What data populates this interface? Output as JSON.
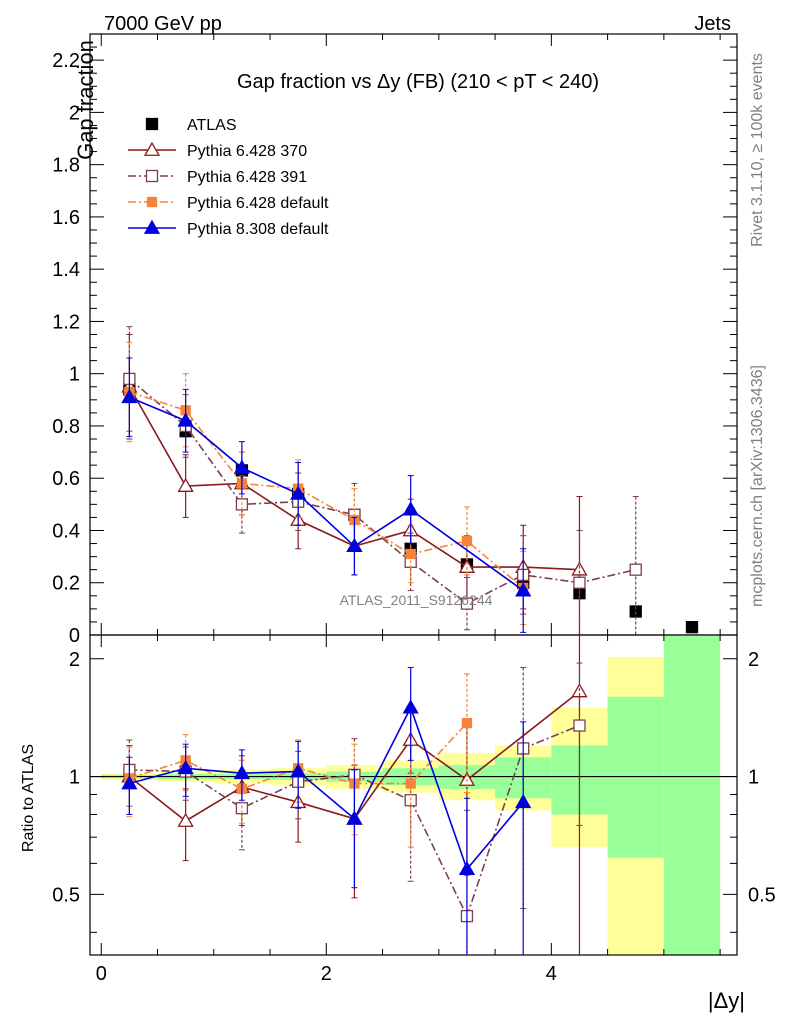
{
  "header": {
    "energy_label": "7000 GeV pp",
    "category_label": "Jets",
    "rivet_label": "Rivet 3.1.10, ≥ 100k events",
    "mcplots_label": "mcplots.cern.ch [arXiv:1306.3436]",
    "analysis_label": "ATLAS_2011_S9126244"
  },
  "chart_data": [
    {
      "type": "scatter",
      "title": "Gap fraction vs Δy (FB) (210 < pT < 240)",
      "ylabel": "Gap fraction",
      "xlim": [
        -0.1,
        5.65
      ],
      "ylim": [
        0,
        2.3
      ],
      "y_ticks": [
        "0",
        "0.2",
        "0.4",
        "0.6",
        "0.8",
        "1",
        "1.2",
        "1.4",
        "1.6",
        "1.8",
        "2",
        "2.2"
      ],
      "legend_position": "top-left",
      "series": [
        {
          "name": "ATLAS",
          "color": "#000000",
          "x": [
            0.25,
            0.75,
            1.25,
            1.75,
            2.25,
            2.75,
            3.25,
            3.75,
            4.25,
            4.75,
            5.25
          ],
          "y": [
            0.94,
            0.78,
            0.63,
            0.54,
            0.46,
            0.33,
            0.27,
            0.2,
            0.16,
            0.09,
            0.03
          ]
        },
        {
          "name": "Pythia 6.428 370",
          "color": "#8b1a1a",
          "x": [
            0.25,
            0.75,
            1.25,
            1.75,
            2.25,
            2.75,
            3.25,
            3.75,
            4.25
          ],
          "y": [
            0.95,
            0.57,
            0.58,
            0.44,
            0.34,
            0.4,
            0.26,
            0.26,
            0.25
          ],
          "err": [
            0.2,
            0.12,
            0.12,
            0.11,
            0.11,
            0.12,
            0.12,
            0.16,
            0.28
          ]
        },
        {
          "name": "Pythia 6.428 391",
          "color": "#7b3f4f",
          "x": [
            0.25,
            0.75,
            1.25,
            1.75,
            2.25,
            2.75,
            3.25,
            3.75,
            4.25,
            4.75
          ],
          "y": [
            0.98,
            0.8,
            0.5,
            0.51,
            0.46,
            0.28,
            0.12,
            0.23,
            0.2,
            0.25
          ],
          "err": [
            0.2,
            0.12,
            0.11,
            0.11,
            0.12,
            0.11,
            0.1,
            0.15,
            0.2,
            0.28
          ]
        },
        {
          "name": "Pythia 6.428 default",
          "color": "#f5843a",
          "x": [
            0.25,
            0.75,
            1.25,
            1.75,
            2.25,
            2.75,
            3.25,
            3.75
          ],
          "y": [
            0.93,
            0.86,
            0.58,
            0.56,
            0.44,
            0.31,
            0.36,
            0.18
          ],
          "err": [
            0.19,
            0.14,
            0.12,
            0.11,
            0.12,
            0.11,
            0.13,
            0.14
          ]
        },
        {
          "name": "Pythia 8.308 default",
          "color": "#0000dd",
          "x": [
            0.25,
            0.75,
            1.25,
            1.75,
            2.25,
            2.75,
            3.75
          ],
          "y": [
            0.91,
            0.82,
            0.64,
            0.54,
            0.34,
            0.48,
            0.17
          ],
          "err": [
            0.15,
            0.12,
            0.1,
            0.12,
            0.11,
            0.13,
            0.16
          ]
        }
      ]
    },
    {
      "type": "scatter",
      "title": "",
      "xlabel": "|Δy|",
      "ylabel": "Ratio to ATLAS",
      "xlim": [
        -0.1,
        5.65
      ],
      "ylim": [
        0.35,
        2.3
      ],
      "x_ticks": [
        "0",
        "2",
        "4"
      ],
      "y_ticks": [
        "0.5",
        "1",
        "2"
      ],
      "bands": {
        "bin_edges": [
          0,
          0.5,
          1,
          1.5,
          2,
          2.5,
          3,
          3.5,
          4,
          4.5,
          5,
          5.5
        ],
        "stat_low": [
          0.99,
          0.985,
          0.985,
          0.98,
          0.97,
          0.95,
          0.93,
          0.88,
          0.8,
          0.62,
          0.33
        ],
        "stat_high": [
          1.01,
          1.015,
          1.015,
          1.02,
          1.03,
          1.05,
          1.07,
          1.12,
          1.2,
          1.6,
          2.3
        ],
        "total_low": [
          0.98,
          0.97,
          0.96,
          0.95,
          0.93,
          0.91,
          0.87,
          0.82,
          0.66,
          0.33,
          0.33
        ],
        "total_high": [
          1.02,
          1.03,
          1.04,
          1.05,
          1.07,
          1.1,
          1.15,
          1.2,
          1.5,
          2.02,
          2.3
        ],
        "stat_color": "#99ff99",
        "total_color": "#ffff99"
      },
      "series": [
        {
          "name": "Pythia 6.428 370",
          "color": "#8b1a1a",
          "x": [
            0.25,
            0.75,
            1.25,
            1.75,
            2.25,
            2.75,
            3.25,
            4.25
          ],
          "y": [
            1.0,
            0.77,
            0.94,
            0.86,
            0.78,
            1.24,
            0.98,
            1.65
          ],
          "err": [
            0.2,
            0.16,
            0.19,
            0.18,
            0.29,
            0.22,
            0.42,
            3.0
          ]
        },
        {
          "name": "Pythia 6.428 391",
          "color": "#7b3f4f",
          "x": [
            0.25,
            0.75,
            1.25,
            1.75,
            2.25,
            2.75,
            3.25,
            3.75,
            4.25
          ],
          "y": [
            1.04,
            1.03,
            0.83,
            0.97,
            1.01,
            0.87,
            0.44,
            1.18,
            1.35
          ],
          "err": [
            0.2,
            0.16,
            0.18,
            0.19,
            0.24,
            0.33,
            0.38,
            0.72,
            0.6
          ]
        },
        {
          "name": "Pythia 6.428 default",
          "color": "#f5843a",
          "x": [
            0.25,
            0.75,
            1.25,
            1.75,
            2.25,
            2.75,
            3.25
          ],
          "y": [
            0.99,
            1.1,
            0.93,
            1.05,
            0.96,
            0.96,
            1.37
          ],
          "err": [
            0.2,
            0.18,
            0.17,
            0.19,
            0.25,
            0.3,
            0.46
          ]
        },
        {
          "name": "Pythia 8.308 default",
          "color": "#0000dd",
          "x": [
            0.25,
            0.75,
            1.25,
            1.75,
            2.25,
            2.75,
            3.25,
            3.75
          ],
          "y": [
            0.96,
            1.05,
            1.02,
            1.03,
            0.78,
            1.5,
            0.58,
            0.86
          ],
          "err": [
            0.16,
            0.16,
            0.15,
            0.2,
            0.26,
            0.4,
            0.3,
            0.52
          ]
        }
      ]
    }
  ]
}
